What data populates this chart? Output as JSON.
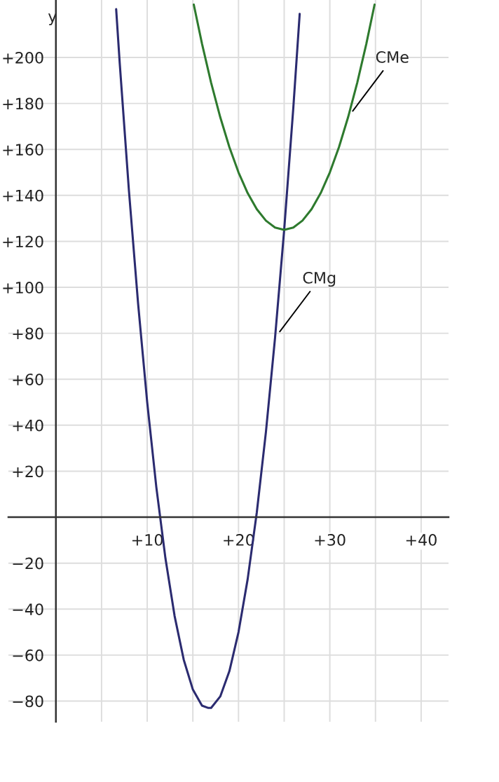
{
  "chart_data": {
    "type": "line",
    "ylabel": "y",
    "xlim": [
      -5.2,
      43
    ],
    "ylim": [
      -89,
      225
    ],
    "xticks": [
      {
        "value": 5,
        "label": null
      },
      {
        "value": 10,
        "label": "+10"
      },
      {
        "value": 15,
        "label": null
      },
      {
        "value": 20,
        "label": "+20"
      },
      {
        "value": 25,
        "label": null
      },
      {
        "value": 30,
        "label": "+30"
      },
      {
        "value": 35,
        "label": null
      },
      {
        "value": 40,
        "label": "+40"
      }
    ],
    "yticks": [
      {
        "value": -80,
        "label": "−80"
      },
      {
        "value": -60,
        "label": "−60"
      },
      {
        "value": -40,
        "label": "−40"
      },
      {
        "value": -20,
        "label": "−20"
      },
      {
        "value": 20,
        "label": "+20"
      },
      {
        "value": 40,
        "label": "+40"
      },
      {
        "value": 60,
        "label": "+60"
      },
      {
        "value": 80,
        "label": "+80"
      },
      {
        "value": 100,
        "label": "+100"
      },
      {
        "value": 120,
        "label": "+120"
      },
      {
        "value": 140,
        "label": "+140"
      },
      {
        "value": 160,
        "label": "+160"
      },
      {
        "value": 180,
        "label": "+180"
      },
      {
        "value": 200,
        "label": "+200"
      }
    ],
    "grid": true,
    "legend": false,
    "marker": "none",
    "line_style": "solid",
    "series": [
      {
        "name": "CMg",
        "color": "#2b2b70",
        "x": [
          6.6,
          7,
          8,
          9,
          10,
          11,
          12,
          13,
          14,
          15,
          16,
          16.7,
          17,
          18,
          19,
          20,
          21,
          22,
          23,
          24,
          25,
          26,
          26.7
        ],
        "values": [
          221,
          197,
          142,
          93,
          50,
          13,
          -18,
          -43,
          -62,
          -75,
          -82,
          -83,
          -83,
          -78,
          -67,
          -50,
          -27,
          2,
          37,
          78,
          125,
          178,
          219
        ]
      },
      {
        "name": "CMe",
        "color": "#2e7a2e",
        "x": [
          15.1,
          16,
          17,
          18,
          19,
          20,
          21,
          22,
          23,
          24,
          25,
          26,
          27,
          28,
          29,
          30,
          31,
          32,
          33,
          34,
          34.9
        ],
        "values": [
          223,
          206,
          189,
          174,
          161,
          150,
          141,
          134,
          129,
          126,
          125,
          126,
          129,
          134,
          141,
          150,
          161,
          174,
          189,
          206,
          223
        ]
      }
    ]
  }
}
